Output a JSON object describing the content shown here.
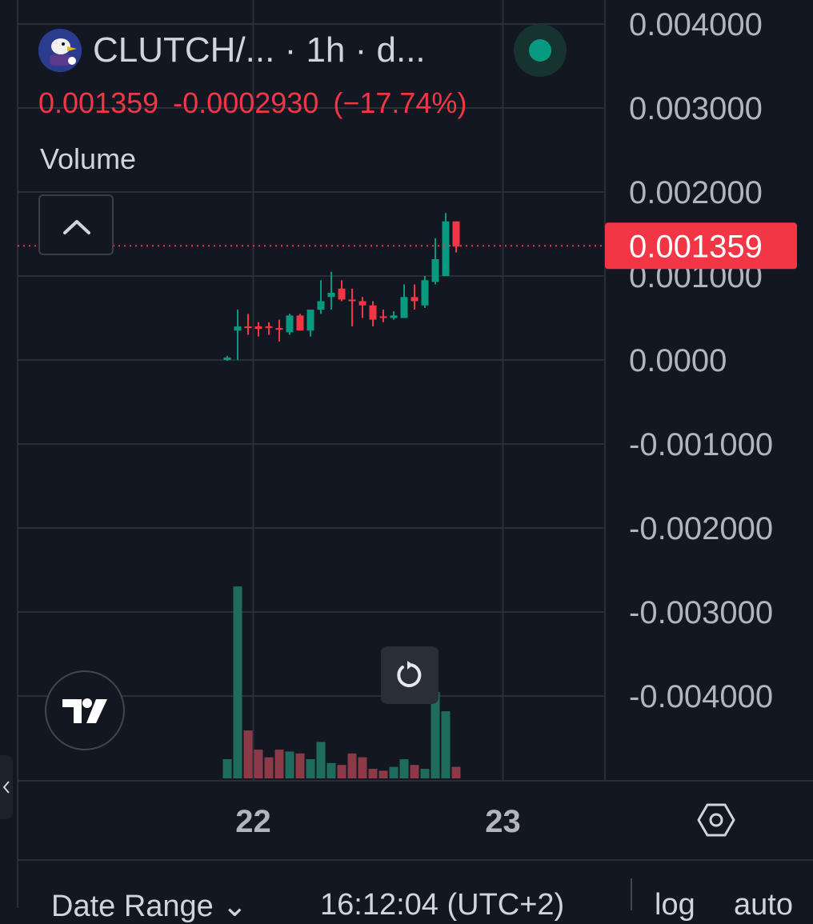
{
  "header": {
    "symbol": "CLUTCH/...",
    "interval": " · 1h · d...",
    "last_price": "0.001359",
    "change": "-0.0002930",
    "change_pct": "(−17.74%)",
    "volume_label": "Volume"
  },
  "price_tag": "0.001359",
  "bottom_bar": {
    "date_range": "Date Range ⌄",
    "time": "16:12:04 (UTC+2)",
    "log": "log",
    "auto": "auto"
  },
  "colors": {
    "background": "#131722",
    "up": "#089981",
    "down": "#f23645",
    "up_volume": "#1f6b5e",
    "down_volume": "#8c3a48",
    "grid": "#2a2e39"
  },
  "icons": [
    "chevron-up-icon",
    "tradingview-logo-icon",
    "reset-icon",
    "settings-hexagon-icon",
    "chevron-left-icon"
  ],
  "chart_data": {
    "type": "candlestick",
    "y_axis": {
      "ticks": [
        "0.004000",
        "0.003000",
        "0.002000",
        "0.001000",
        "0.0000",
        "-0.001000",
        "-0.002000",
        "-0.003000",
        "-0.004000"
      ],
      "tick_values": [
        0.004,
        0.003,
        0.002,
        0.001,
        0.0,
        -0.001,
        -0.002,
        -0.003,
        -0.004
      ],
      "range": [
        -0.00499,
        0.00419
      ]
    },
    "x_axis": {
      "ticks": [
        "22",
        "23"
      ],
      "tick_index": [
        2.5,
        26.5
      ]
    },
    "last_price": 0.001359,
    "candles": [
      {
        "o": 0.0,
        "h": 5e-05,
        "l": -1e-05,
        "c": 3e-05
      },
      {
        "o": 0.00035,
        "h": 0.0006,
        "l": 0.0,
        "c": 0.0004
      },
      {
        "o": 0.0004,
        "h": 0.00055,
        "l": 0.0003,
        "c": 0.00038
      },
      {
        "o": 0.0004,
        "h": 0.00045,
        "l": 0.00028,
        "c": 0.00037
      },
      {
        "o": 0.0004,
        "h": 0.00045,
        "l": 0.0003,
        "c": 0.00038
      },
      {
        "o": 0.00038,
        "h": 0.00048,
        "l": 0.00022,
        "c": 0.00036
      },
      {
        "o": 0.00033,
        "h": 0.00055,
        "l": 0.0003,
        "c": 0.00053
      },
      {
        "o": 0.00053,
        "h": 0.00055,
        "l": 0.00035,
        "c": 0.00035
      },
      {
        "o": 0.00035,
        "h": 0.0006,
        "l": 0.00028,
        "c": 0.0006
      },
      {
        "o": 0.0006,
        "h": 0.00095,
        "l": 0.00055,
        "c": 0.0007
      },
      {
        "o": 0.00075,
        "h": 0.00105,
        "l": 0.0006,
        "c": 0.0008
      },
      {
        "o": 0.00085,
        "h": 0.00095,
        "l": 0.0007,
        "c": 0.00072
      },
      {
        "o": 0.00072,
        "h": 0.00085,
        "l": 0.0004,
        "c": 0.0007
      },
      {
        "o": 0.0007,
        "h": 0.00075,
        "l": 0.0005,
        "c": 0.00065
      },
      {
        "o": 0.00065,
        "h": 0.0007,
        "l": 0.0004,
        "c": 0.00048
      },
      {
        "o": 0.00052,
        "h": 0.0006,
        "l": 0.00045,
        "c": 0.0005
      },
      {
        "o": 0.0005,
        "h": 0.00058,
        "l": 0.00048,
        "c": 0.00053
      },
      {
        "o": 0.0005,
        "h": 0.0009,
        "l": 0.0005,
        "c": 0.00075
      },
      {
        "o": 0.00075,
        "h": 0.0009,
        "l": 0.0006,
        "c": 0.0007
      },
      {
        "o": 0.00065,
        "h": 0.001,
        "l": 0.00062,
        "c": 0.00095
      },
      {
        "o": 0.00093,
        "h": 0.00145,
        "l": 0.0009,
        "c": 0.0012
      },
      {
        "o": 0.001,
        "h": 0.00175,
        "l": 0.001,
        "c": 0.00165
      },
      {
        "o": 0.00165,
        "h": 0.00165,
        "l": 0.00128,
        "c": 0.00135
      }
    ],
    "volume": {
      "scale_max": 100,
      "values": [
        10,
        100,
        25,
        15,
        11,
        15,
        14,
        13,
        10,
        19,
        8,
        7,
        13,
        11,
        5,
        4,
        6,
        10,
        7,
        5,
        45,
        35,
        6
      ]
    }
  }
}
